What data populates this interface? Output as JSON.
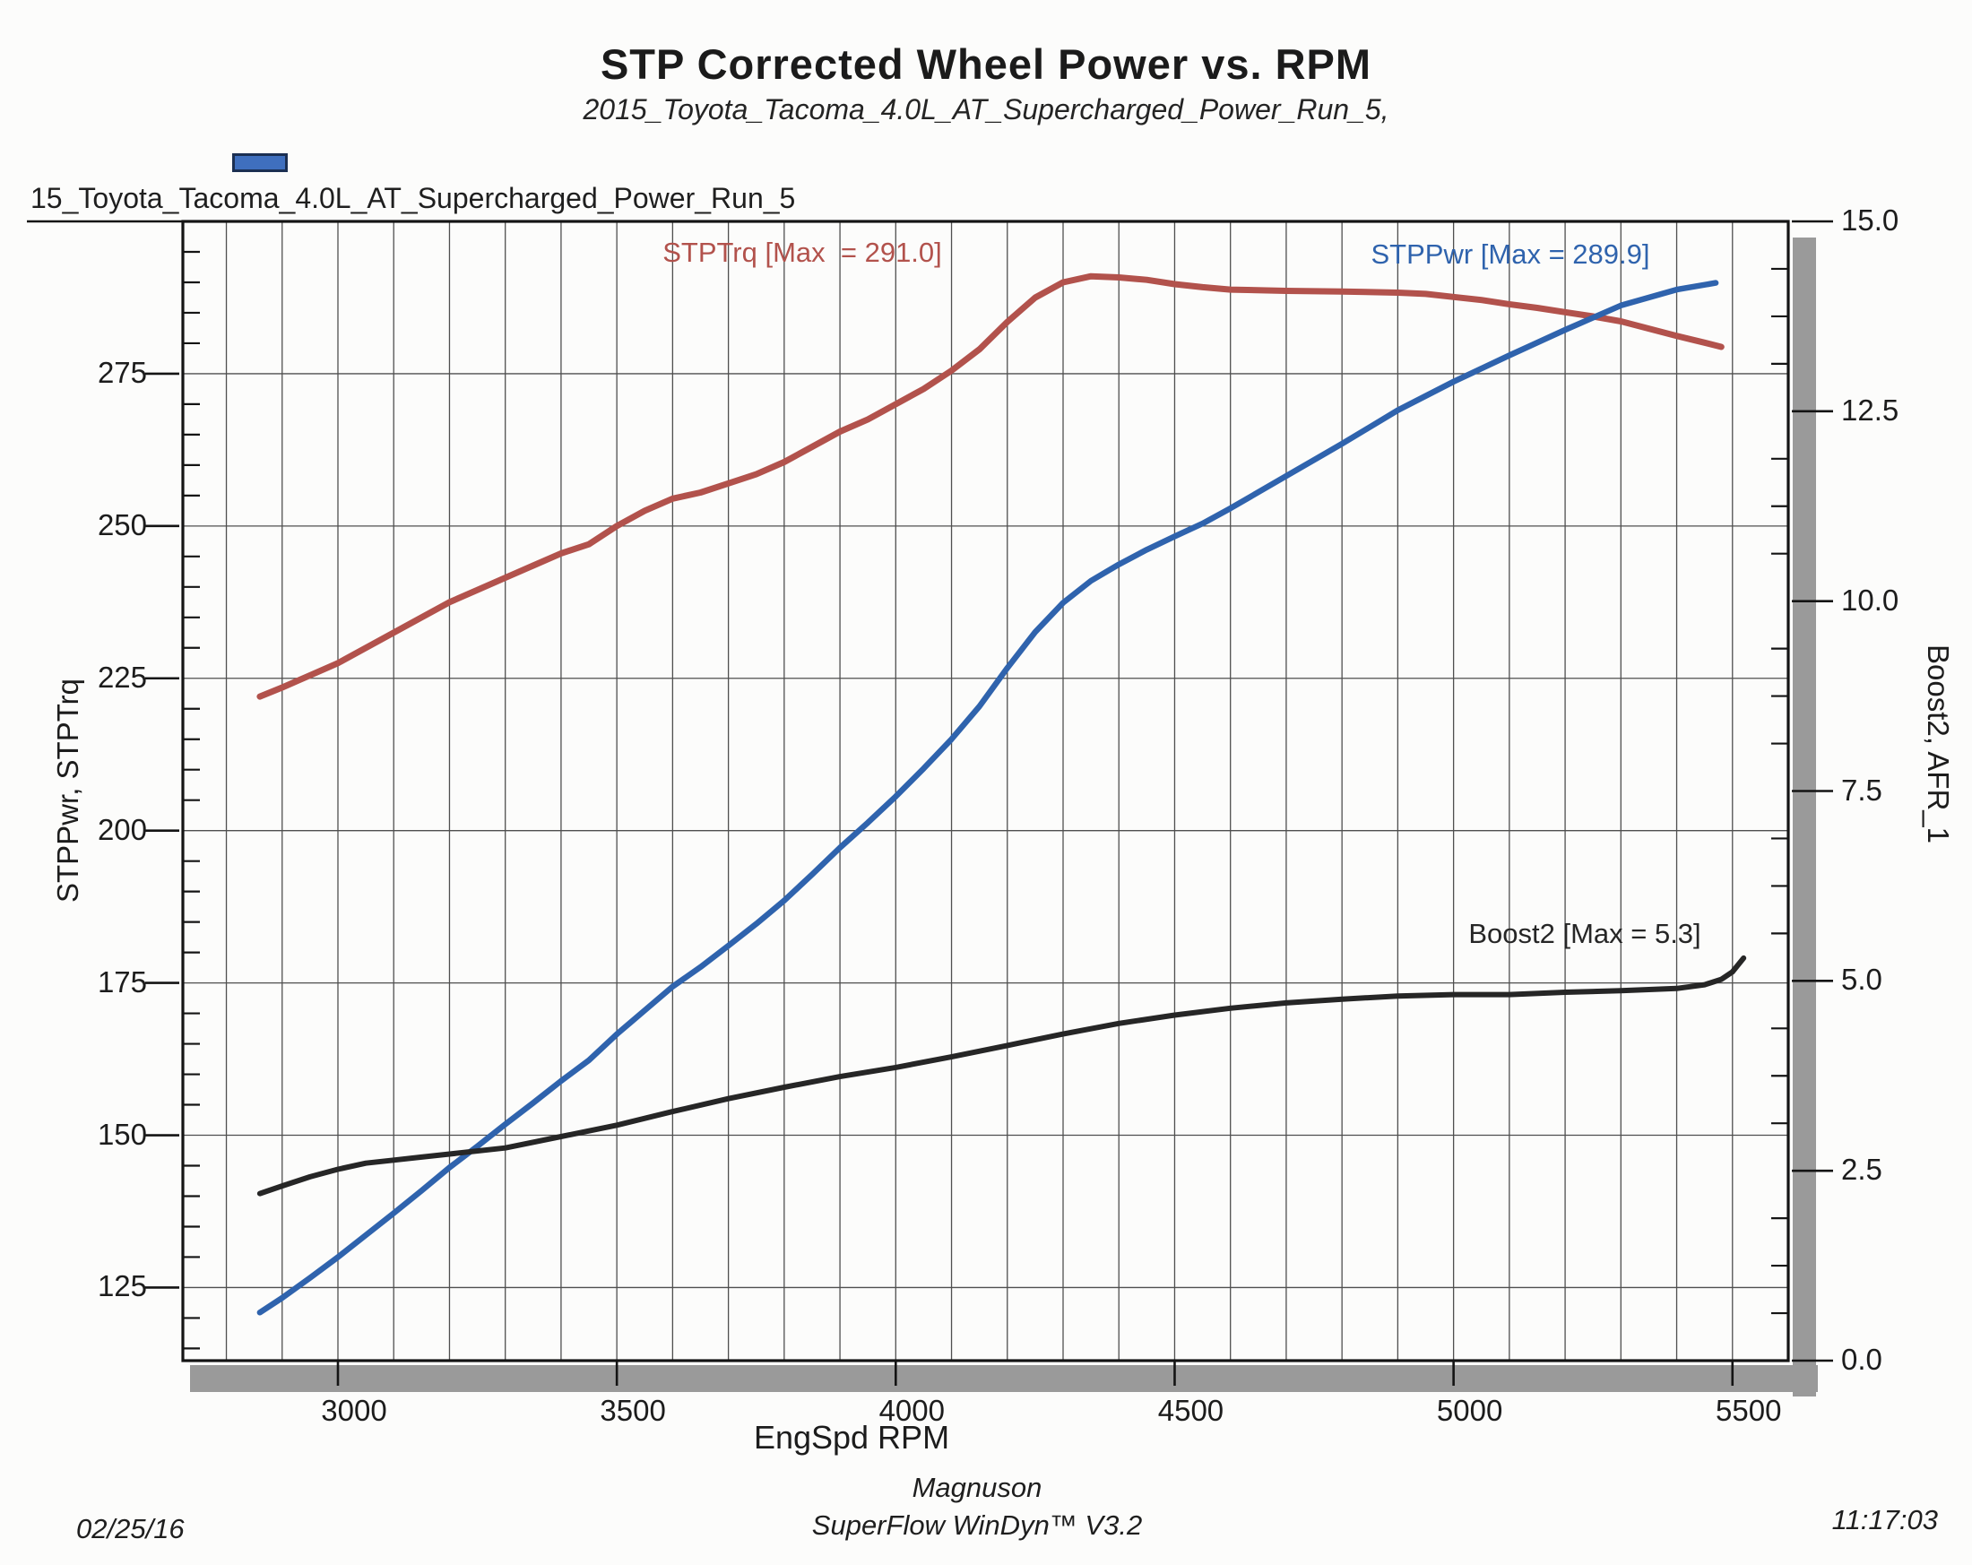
{
  "title": "STP Corrected Wheel Power vs. RPM",
  "subtitle": "2015_Toyota_Tacoma_4.0L_AT_Supercharged_Power_Run_5,",
  "legend": {
    "label": "15_Toyota_Tacoma_4.0L_AT_Supercharged_Power_Run_5",
    "swatch_color": "#3f6fbe",
    "swatch_border_color": "#1b2f52"
  },
  "footer": {
    "date": "02/25/16",
    "brand": "Magnuson",
    "software": "SuperFlow WinDyn™ V3.2",
    "time": "11:17:03"
  },
  "chart_data": {
    "type": "line",
    "title": "STP Corrected Wheel Power vs. RPM",
    "xlabel": "EngSpd RPM",
    "ylabel_left": "STPPwr, STPTrq",
    "ylabel_right": "Boost2, AFR_1",
    "xlim": [
      2722,
      5600
    ],
    "ylim_left": [
      113,
      300
    ],
    "ylim_right": [
      0,
      15
    ],
    "x_ticks": [
      3000,
      3500,
      4000,
      4500,
      5000,
      5500
    ],
    "x_grid_step": 100,
    "y_ticks_left": [
      125,
      150,
      175,
      200,
      225,
      250,
      275
    ],
    "y_grid_step_left": 25,
    "y_minor_step_left": 5,
    "y_ticks_right": [
      "0.0",
      "2.5",
      "5.0",
      "7.5",
      "10.0",
      "12.5",
      "15.0"
    ],
    "y_minor_step_right": 0.625,
    "grid": true,
    "legend_position": "top-left",
    "colors": {
      "grid": "#4f4f4f",
      "frame": "#141414",
      "shadow": "#9a9a9a"
    },
    "series": [
      {
        "name": "STPTrq",
        "label": "STPTrq [Max  = 291.0]",
        "max": 291.0,
        "axis": "left",
        "color": "#b2524c",
        "width": 7,
        "points": [
          [
            2860,
            222
          ],
          [
            2900,
            223.5
          ],
          [
            2950,
            225.5
          ],
          [
            3000,
            227.5
          ],
          [
            3050,
            230
          ],
          [
            3100,
            232.5
          ],
          [
            3150,
            235
          ],
          [
            3200,
            237.5
          ],
          [
            3250,
            239.5
          ],
          [
            3300,
            241.5
          ],
          [
            3350,
            243.5
          ],
          [
            3400,
            245.5
          ],
          [
            3450,
            247
          ],
          [
            3500,
            250
          ],
          [
            3550,
            252.5
          ],
          [
            3600,
            254.5
          ],
          [
            3650,
            255.5
          ],
          [
            3700,
            257
          ],
          [
            3750,
            258.5
          ],
          [
            3800,
            260.5
          ],
          [
            3850,
            263
          ],
          [
            3900,
            265.5
          ],
          [
            3950,
            267.5
          ],
          [
            4000,
            270
          ],
          [
            4050,
            272.5
          ],
          [
            4100,
            275.5
          ],
          [
            4150,
            279
          ],
          [
            4200,
            283.5
          ],
          [
            4250,
            287.5
          ],
          [
            4300,
            290
          ],
          [
            4350,
            291
          ],
          [
            4400,
            290.8
          ],
          [
            4450,
            290.4
          ],
          [
            4500,
            289.7
          ],
          [
            4550,
            289.2
          ],
          [
            4600,
            288.8
          ],
          [
            4700,
            288.6
          ],
          [
            4800,
            288.5
          ],
          [
            4900,
            288.3
          ],
          [
            4950,
            288.1
          ],
          [
            5000,
            287.6
          ],
          [
            5050,
            287.1
          ],
          [
            5100,
            286.4
          ],
          [
            5150,
            285.8
          ],
          [
            5200,
            285.1
          ],
          [
            5250,
            284.4
          ],
          [
            5300,
            283.6
          ],
          [
            5350,
            282.4
          ],
          [
            5400,
            281.2
          ],
          [
            5450,
            280.1
          ],
          [
            5480,
            279.4
          ]
        ]
      },
      {
        "name": "STPPwr",
        "label": "STPPwr [Max = 289.9]",
        "max": 289.9,
        "axis": "left",
        "color": "#2f63ad",
        "width": 6.5,
        "points": [
          [
            2860,
            120.9
          ],
          [
            2900,
            123.3
          ],
          [
            2950,
            126.6
          ],
          [
            3000,
            130
          ],
          [
            3050,
            133.6
          ],
          [
            3100,
            137.2
          ],
          [
            3150,
            140.9
          ],
          [
            3200,
            144.7
          ],
          [
            3250,
            148.2
          ],
          [
            3300,
            151.8
          ],
          [
            3350,
            155.3
          ],
          [
            3400,
            158.9
          ],
          [
            3450,
            162.3
          ],
          [
            3500,
            166.6
          ],
          [
            3550,
            170.5
          ],
          [
            3600,
            174.4
          ],
          [
            3650,
            177.6
          ],
          [
            3700,
            181.1
          ],
          [
            3750,
            184.7
          ],
          [
            3800,
            188.5
          ],
          [
            3850,
            192.8
          ],
          [
            3900,
            197.2
          ],
          [
            3950,
            201.3
          ],
          [
            4000,
            205.6
          ],
          [
            4050,
            210.2
          ],
          [
            4100,
            215
          ],
          [
            4150,
            220.4
          ],
          [
            4200,
            226.7
          ],
          [
            4250,
            232.6
          ],
          [
            4300,
            237.4
          ],
          [
            4350,
            241
          ],
          [
            4400,
            243.7
          ],
          [
            4450,
            246.1
          ],
          [
            4500,
            248.3
          ],
          [
            4550,
            250.4
          ],
          [
            4600,
            252.9
          ],
          [
            4700,
            258.2
          ],
          [
            4800,
            263.5
          ],
          [
            4900,
            269
          ],
          [
            5000,
            273.7
          ],
          [
            5100,
            278
          ],
          [
            5200,
            282.2
          ],
          [
            5300,
            286.2
          ],
          [
            5400,
            288.8
          ],
          [
            5470,
            289.9
          ]
        ]
      },
      {
        "name": "Boost2",
        "label": "Boost2 [Max = 5.3]",
        "max": 5.3,
        "axis": "right",
        "color": "#262626",
        "width": 6,
        "points": [
          [
            2860,
            2.2
          ],
          [
            2900,
            2.3
          ],
          [
            2950,
            2.42
          ],
          [
            3000,
            2.52
          ],
          [
            3050,
            2.6
          ],
          [
            3100,
            2.64
          ],
          [
            3150,
            2.68
          ],
          [
            3200,
            2.72
          ],
          [
            3300,
            2.8
          ],
          [
            3400,
            2.95
          ],
          [
            3500,
            3.1
          ],
          [
            3600,
            3.28
          ],
          [
            3700,
            3.45
          ],
          [
            3800,
            3.6
          ],
          [
            3900,
            3.74
          ],
          [
            4000,
            3.86
          ],
          [
            4100,
            4.0
          ],
          [
            4200,
            4.15
          ],
          [
            4300,
            4.3
          ],
          [
            4400,
            4.44
          ],
          [
            4500,
            4.55
          ],
          [
            4600,
            4.64
          ],
          [
            4700,
            4.71
          ],
          [
            4800,
            4.76
          ],
          [
            4900,
            4.8
          ],
          [
            5000,
            4.82
          ],
          [
            5100,
            4.82
          ],
          [
            5200,
            4.85
          ],
          [
            5300,
            4.87
          ],
          [
            5400,
            4.9
          ],
          [
            5450,
            4.95
          ],
          [
            5480,
            5.02
          ],
          [
            5500,
            5.12
          ],
          [
            5520,
            5.3
          ]
        ]
      }
    ]
  }
}
